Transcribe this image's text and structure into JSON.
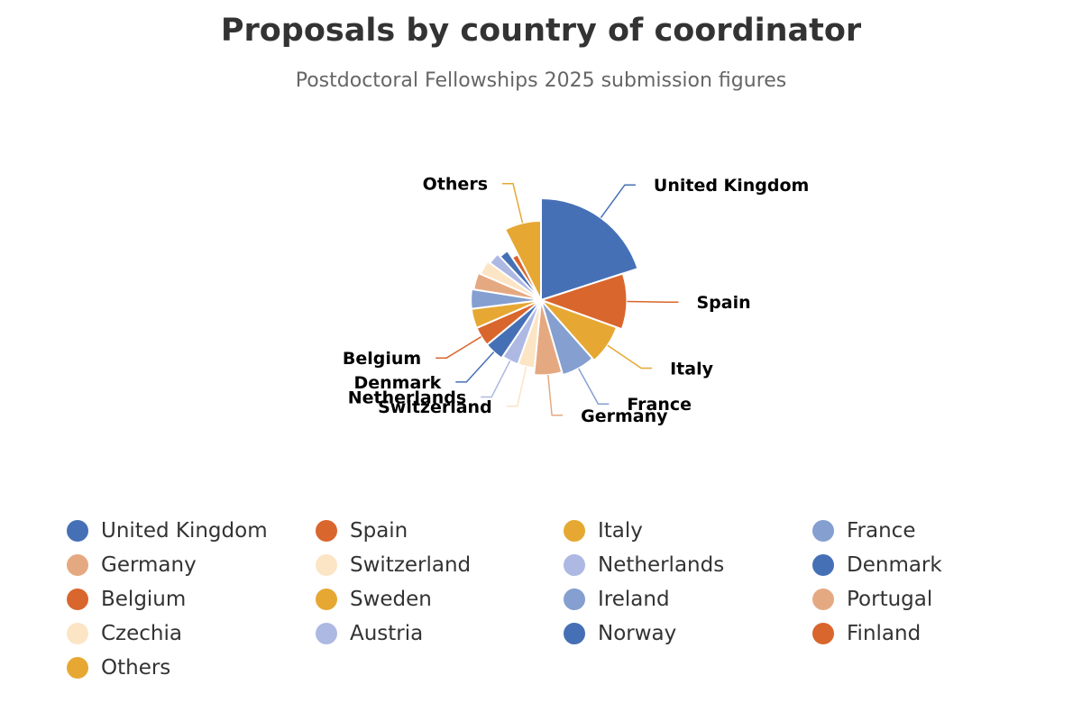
{
  "title": "Proposals by country of coordinator",
  "subtitle": "Postdoctoral Fellowships 2025 submission figures",
  "chart_data": {
    "type": "pie",
    "variant": "variable-radius",
    "slices": [
      {
        "name": "United Kingdom",
        "value": 20.0,
        "color": "#4670b6",
        "show_label": true
      },
      {
        "name": "Spain",
        "value": 10.5,
        "color": "#d9662d",
        "show_label": true
      },
      {
        "name": "Italy",
        "value": 8.0,
        "color": "#e6a833",
        "show_label": true
      },
      {
        "name": "France",
        "value": 7.0,
        "color": "#849fd0",
        "show_label": true
      },
      {
        "name": "Germany",
        "value": 6.0,
        "color": "#e5a982",
        "show_label": true
      },
      {
        "name": "Switzerland",
        "value": 4.0,
        "color": "#fbe5c5",
        "show_label": true
      },
      {
        "name": "Netherlands",
        "value": 4.0,
        "color": "#adb9e3",
        "show_label": true
      },
      {
        "name": "Denmark",
        "value": 4.5,
        "color": "#4670b6",
        "show_label": true
      },
      {
        "name": "Belgium",
        "value": 4.5,
        "color": "#d9662d",
        "show_label": true
      },
      {
        "name": "Sweden",
        "value": 4.5,
        "color": "#e6a833",
        "show_label": false
      },
      {
        "name": "Ireland",
        "value": 4.5,
        "color": "#849fd0",
        "show_label": false
      },
      {
        "name": "Portugal",
        "value": 4.0,
        "color": "#e5a982",
        "show_label": false
      },
      {
        "name": "Czechia",
        "value": 3.5,
        "color": "#fbe5c5",
        "show_label": false
      },
      {
        "name": "Austria",
        "value": 3.0,
        "color": "#adb9e3",
        "show_label": false
      },
      {
        "name": "Norway",
        "value": 2.5,
        "color": "#4670b6",
        "show_label": false
      },
      {
        "name": "Finland",
        "value": 2.0,
        "color": "#d9662d",
        "show_label": false
      },
      {
        "name": "Others",
        "value": 7.5,
        "color": "#e6a833",
        "show_label": true
      }
    ],
    "legend_position": "bottom"
  }
}
